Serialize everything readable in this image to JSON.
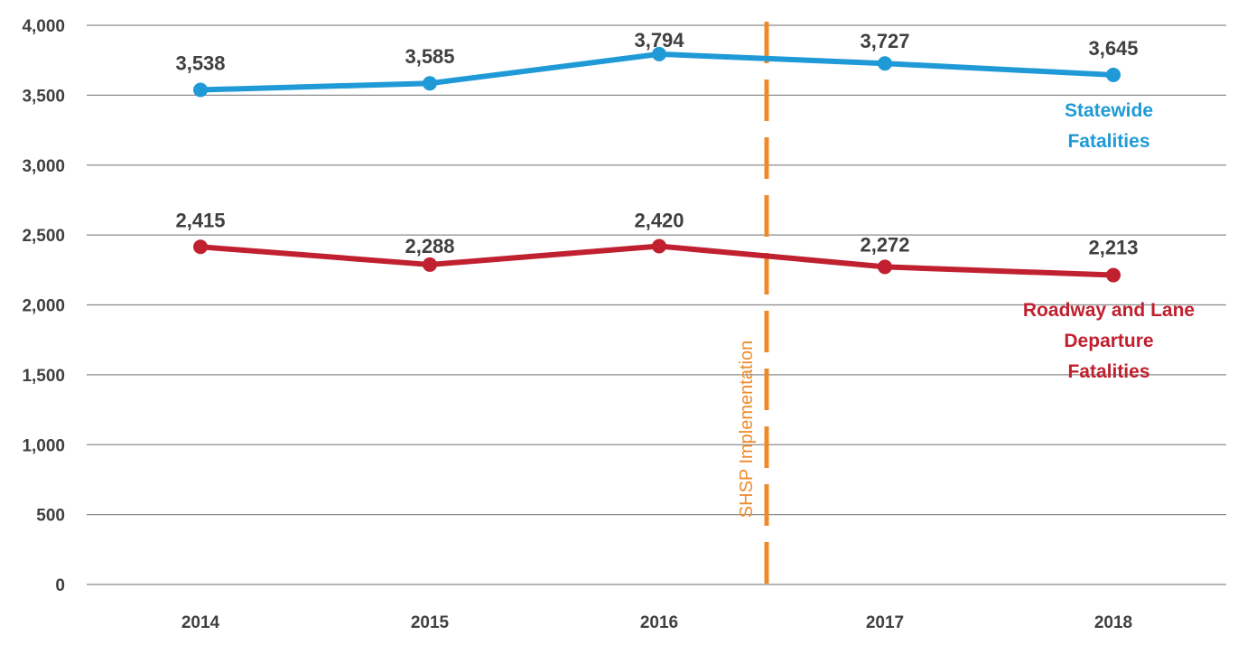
{
  "chart_data": {
    "type": "line",
    "title": "",
    "xlabel": "",
    "ylabel": "",
    "categories": [
      "2014",
      "2015",
      "2016",
      "2017",
      "2018"
    ],
    "ylim": [
      0,
      4000
    ],
    "yticks": [
      0,
      500,
      1000,
      1500,
      2000,
      2500,
      3000,
      3500,
      4000
    ],
    "ytick_labels": [
      "0",
      "500",
      "1,000",
      "1,500",
      "2,000",
      "2,500",
      "3,000",
      "3,500",
      "4,000"
    ],
    "grid": true,
    "legend": "none (series labelled directly on the chart)",
    "series": [
      {
        "name_lines": [
          "Statewide",
          "Fatalities"
        ],
        "color": "#1f9ad6",
        "values": [
          3538,
          3585,
          3794,
          3727,
          3645
        ],
        "value_labels": [
          "3,538",
          "3,585",
          "3,794",
          "3,727",
          "3,645"
        ]
      },
      {
        "name_lines": [
          "Roadway and Lane",
          "Departure",
          "Fatalities"
        ],
        "color": "#c0202f",
        "values": [
          2415,
          2288,
          2420,
          2272,
          2213
        ],
        "value_labels": [
          "2,415",
          "2,288",
          "2,420",
          "2,272",
          "2,213"
        ]
      }
    ],
    "annotations": [
      {
        "text": "SHSP Implementation",
        "x_between": [
          "2016",
          "2017"
        ],
        "style": "dashed vertical line",
        "color": "#ef8a2a"
      }
    ]
  }
}
